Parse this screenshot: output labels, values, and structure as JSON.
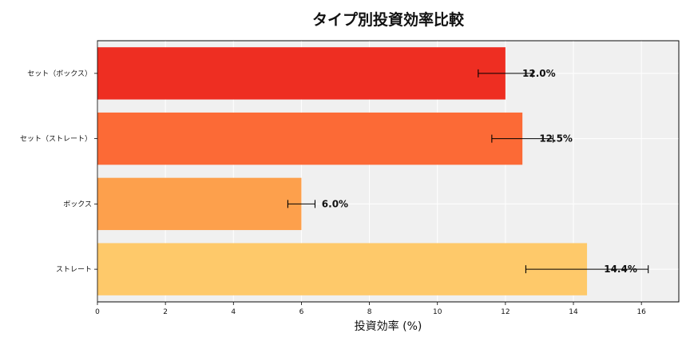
{
  "chart_data": {
    "type": "bar",
    "orientation": "horizontal",
    "title": "タイプ別投資効率比較",
    "xlabel": "投資効率 (%)",
    "ylabel": "",
    "xlim": [
      0,
      17.1
    ],
    "xticks": [
      0,
      2,
      4,
      6,
      8,
      10,
      12,
      14,
      16
    ],
    "grid": true,
    "legend": "none",
    "categories": [
      "セット（ボックス）",
      "セット（ストレート）",
      "ボックス",
      "ストレート"
    ],
    "values": [
      12.0,
      12.5,
      6.0,
      14.4
    ],
    "errors": [
      0.8,
      0.9,
      0.4,
      1.8
    ],
    "data_labels": [
      "12.0%",
      "12.5%",
      "6.0%",
      "14.4%"
    ],
    "colors": [
      "#ee2e22",
      "#fc6a36",
      "#fda04c",
      "#fec96a"
    ],
    "background": "#f0f0f0"
  }
}
